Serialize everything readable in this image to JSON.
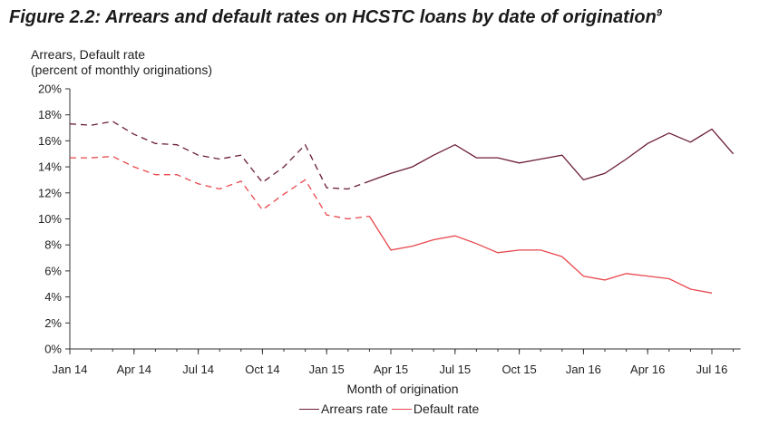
{
  "figure": {
    "title_main": "Figure 2.2: Arrears and default rates on HCSTC loans by date of origination",
    "title_sup": "9"
  },
  "chart_data": {
    "type": "line",
    "ylabel_line1": "Arrears, Default rate",
    "ylabel_line2": "(percent of monthly originations)",
    "xlabel": "Month of origination",
    "ylim": [
      0,
      20
    ],
    "yticks": [
      "0%",
      "2%",
      "4%",
      "6%",
      "8%",
      "10%",
      "12%",
      "14%",
      "16%",
      "18%",
      "20%"
    ],
    "x_tick_labels": [
      "Jan 14",
      "Apr 14",
      "Jul 14",
      "Oct 14",
      "Jan 15",
      "Apr 15",
      "Jul 15",
      "Oct 15",
      "Jan 16",
      "Apr 16",
      "Jul 16"
    ],
    "months": [
      "Jan 14",
      "Feb 14",
      "Mar 14",
      "Apr 14",
      "May 14",
      "Jun 14",
      "Jul 14",
      "Aug 14",
      "Sep 14",
      "Oct 14",
      "Nov 14",
      "Dec 14",
      "Jan 15",
      "Feb 15",
      "Mar 15",
      "Apr 15",
      "May 15",
      "Jun 15",
      "Jul 15",
      "Aug 15",
      "Sep 15",
      "Oct 15",
      "Nov 15",
      "Dec 15",
      "Jan 16",
      "Feb 16",
      "Mar 16",
      "Apr 16",
      "May 16",
      "Jun 16",
      "Jul 16",
      "Aug 16"
    ],
    "dashed_through": "Mar 15",
    "grid": false,
    "legend_position": "bottom",
    "series": [
      {
        "name": "Arrears rate",
        "color": "#6b1d3a",
        "values": [
          17.3,
          17.2,
          17.5,
          16.5,
          15.8,
          15.7,
          14.9,
          14.6,
          14.9,
          12.8,
          14.0,
          15.7,
          12.4,
          12.3,
          12.9,
          13.5,
          14.0,
          14.9,
          15.7,
          14.7,
          14.7,
          14.3,
          14.6,
          14.9,
          13.0,
          13.5,
          14.6,
          15.8,
          16.6,
          15.9,
          16.9,
          15.0
        ]
      },
      {
        "name": "Default rate",
        "color": "#e8474c",
        "values": [
          14.7,
          14.7,
          14.8,
          14.0,
          13.4,
          13.4,
          12.7,
          12.3,
          12.9,
          10.7,
          11.9,
          13.0,
          10.3,
          10.0,
          10.2,
          7.6,
          7.9,
          8.4,
          8.7,
          8.1,
          7.4,
          7.6,
          7.6,
          7.1,
          5.6,
          5.3,
          5.8,
          5.6,
          5.4,
          4.6,
          4.3,
          null
        ]
      }
    ]
  }
}
